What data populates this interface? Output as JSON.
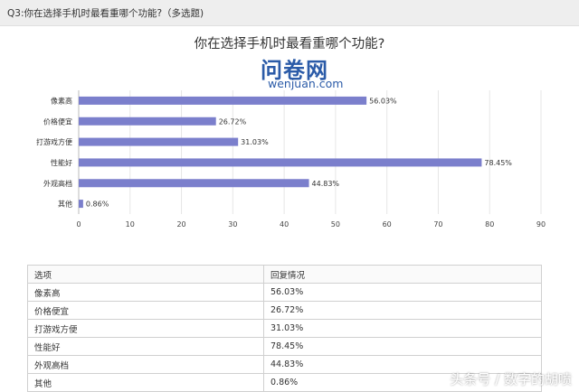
{
  "header": {
    "question": "Q3:你在选择手机时最看重哪个功能?（多选题)"
  },
  "logo": {
    "brand": "问卷网",
    "domain": "wenjuan.com"
  },
  "colors": {
    "bar": "#7b7fcc",
    "logo": "#2b5ba8"
  },
  "chart_data": {
    "type": "bar",
    "orientation": "horizontal",
    "title": "你在选择手机时最看重哪个功能?",
    "categories": [
      "像素高",
      "价格便宜",
      "打游戏方便",
      "性能好",
      "外观高档",
      "其他"
    ],
    "values": [
      56.03,
      26.72,
      31.03,
      78.45,
      44.83,
      0.86
    ],
    "value_labels": [
      "56.03%",
      "26.72%",
      "31.03%",
      "78.45%",
      "44.83%",
      "0.86%"
    ],
    "xlim": [
      0,
      90
    ],
    "xticks": [
      "0",
      "10",
      "20",
      "30",
      "40",
      "50",
      "60",
      "70",
      "80",
      "90"
    ],
    "grid": true
  },
  "table": {
    "headers": [
      "选项",
      "回复情况"
    ],
    "rows": [
      [
        "像素高",
        "56.03%"
      ],
      [
        "价格便宜",
        "26.72%"
      ],
      [
        "打游戏方便",
        "31.03%"
      ],
      [
        "性能好",
        "78.45%"
      ],
      [
        "外观高档",
        "44.83%"
      ],
      [
        "其他",
        "0.86%"
      ]
    ]
  },
  "watermark": "头条号 / 数字的胡喷"
}
